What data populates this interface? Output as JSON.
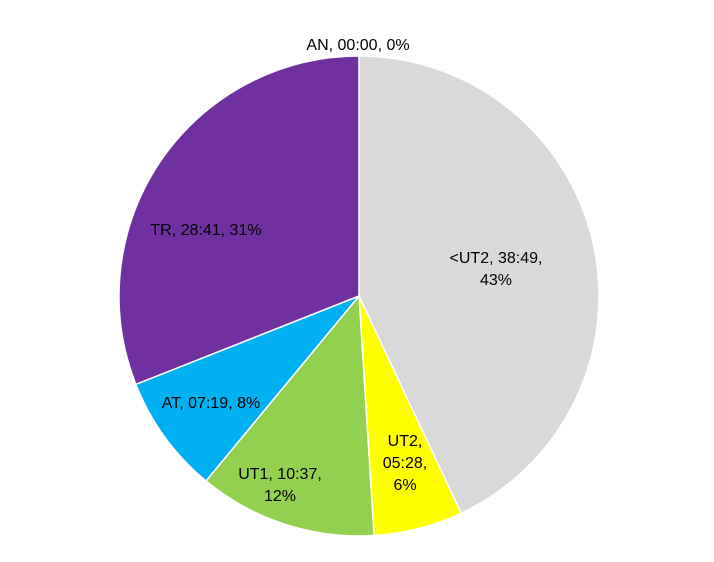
{
  "chart_data": {
    "type": "pie",
    "start": "top",
    "direction": "clockwise",
    "slices": [
      {
        "category": "<UT2",
        "time": "38:49",
        "percent": 43,
        "color": "#d9d9d9",
        "label_lines": [
          "<UT2, 38:49,",
          "43%"
        ]
      },
      {
        "category": "UT2",
        "time": "05:28",
        "percent": 6,
        "color": "#ffff00",
        "label_lines": [
          "UT2,",
          "05:28,",
          "6%"
        ]
      },
      {
        "category": "UT1",
        "time": "10:37",
        "percent": 12,
        "color": "#92d050",
        "label_lines": [
          "UT1, 10:37,",
          "12%"
        ]
      },
      {
        "category": "AT",
        "time": "07:19",
        "percent": 8,
        "color": "#00b0f0",
        "label_lines": [
          "AT, 07:19, 8%"
        ]
      },
      {
        "category": "TR",
        "time": "28:41",
        "percent": 31,
        "color": "#7030a0",
        "label_lines": [
          "TR, 28:41, 31%"
        ]
      },
      {
        "category": "AN",
        "time": "00:00",
        "percent": 0,
        "color": "#ff0000",
        "label_lines": [
          "AN, 00:00, 0%"
        ]
      }
    ],
    "legend": "none"
  }
}
